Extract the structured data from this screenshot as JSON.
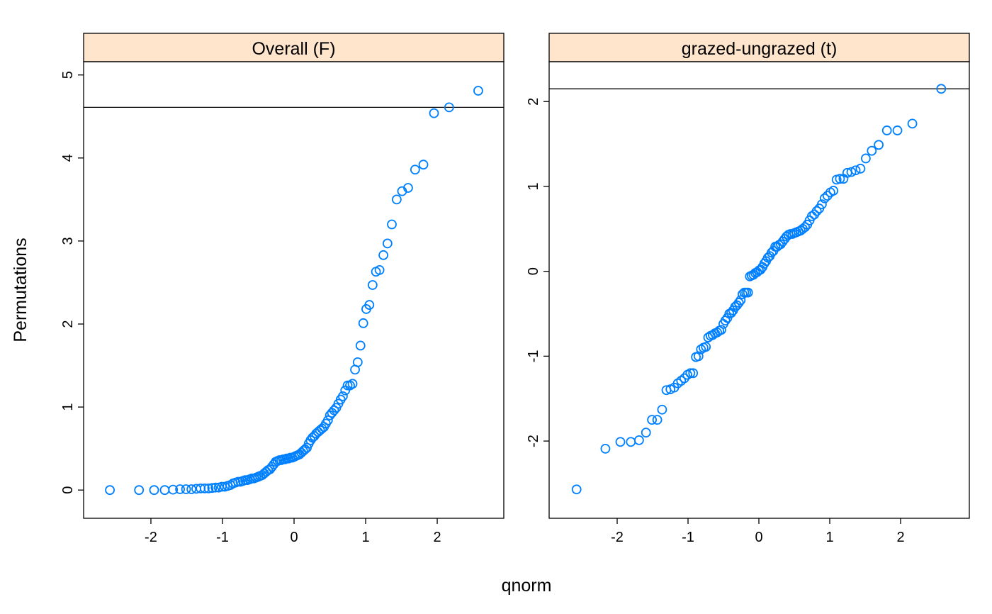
{
  "xlabel": "qnorm",
  "ylabel": "Permutations",
  "chart_data": [
    {
      "type": "scatter",
      "title": "Overall (F)",
      "color": "#0080ff",
      "strip_color": "#ffe5cc",
      "x": [
        -2.573,
        -2.166,
        -1.955,
        -1.807,
        -1.691,
        -1.593,
        -1.509,
        -1.434,
        -1.366,
        -1.305,
        -1.248,
        -1.194,
        -1.144,
        -1.097,
        -1.052,
        -1.009,
        -0.967,
        -0.928,
        -0.889,
        -0.852,
        -0.817,
        -0.782,
        -0.748,
        -0.715,
        -0.682,
        -0.651,
        -0.619,
        -0.589,
        -0.559,
        -0.53,
        -0.501,
        -0.473,
        -0.445,
        -0.417,
        -0.39,
        -0.363,
        -0.336,
        -0.309,
        -0.283,
        -0.257,
        -0.231,
        -0.205,
        -0.179,
        -0.153,
        -0.127,
        -0.102,
        -0.076,
        -0.051,
        -0.025,
        0,
        0.025,
        0.051,
        0.076,
        0.102,
        0.127,
        0.153,
        0.179,
        0.205,
        0.231,
        0.257,
        0.283,
        0.309,
        0.336,
        0.363,
        0.39,
        0.417,
        0.445,
        0.473,
        0.501,
        0.53,
        0.559,
        0.589,
        0.619,
        0.651,
        0.682,
        0.715,
        0.748,
        0.782,
        0.817,
        0.852,
        0.889,
        0.928,
        0.967,
        1.009,
        1.052,
        1.097,
        1.144,
        1.194,
        1.248,
        1.305,
        1.366,
        1.434,
        1.509,
        1.593,
        1.691,
        1.807,
        1.955,
        2.166,
        2.573
      ],
      "values": [
        0,
        0,
        0,
        0,
        0.005,
        0.01,
        0.01,
        0.01,
        0.015,
        0.02,
        0.02,
        0.02,
        0.025,
        0.03,
        0.03,
        0.04,
        0.04,
        0.05,
        0.06,
        0.08,
        0.09,
        0.1,
        0.1,
        0.11,
        0.12,
        0.12,
        0.13,
        0.14,
        0.14,
        0.15,
        0.16,
        0.17,
        0.18,
        0.2,
        0.22,
        0.24,
        0.25,
        0.28,
        0.31,
        0.34,
        0.35,
        0.36,
        0.36,
        0.37,
        0.37,
        0.38,
        0.38,
        0.39,
        0.39,
        0.4,
        0.41,
        0.42,
        0.43,
        0.45,
        0.47,
        0.49,
        0.51,
        0.56,
        0.6,
        0.63,
        0.65,
        0.68,
        0.7,
        0.72,
        0.74,
        0.76,
        0.8,
        0.84,
        0.9,
        0.93,
        0.96,
        0.99,
        1.04,
        1.09,
        1.13,
        1.2,
        1.26,
        1.26,
        1.28,
        1.45,
        1.54,
        1.74,
        2.01,
        2.18,
        2.23,
        2.47,
        2.63,
        2.65,
        2.83,
        2.97,
        3.2,
        3.5,
        3.6,
        3.64,
        3.86,
        3.92,
        4.54,
        4.61,
        4.81
      ],
      "hline": 4.61,
      "xlim": [
        -2.94,
        2.93
      ],
      "ylim": [
        -0.34,
        5.16
      ],
      "xticks": [
        -2,
        -1,
        0,
        1,
        2
      ],
      "yticks": [
        0,
        1,
        2,
        3,
        4,
        5
      ]
    },
    {
      "type": "scatter",
      "title": "grazed-ungrazed (t)",
      "color": "#0080ff",
      "strip_color": "#ffe5cc",
      "x": [
        -2.573,
        -2.166,
        -1.955,
        -1.807,
        -1.691,
        -1.593,
        -1.509,
        -1.434,
        -1.366,
        -1.305,
        -1.248,
        -1.194,
        -1.144,
        -1.097,
        -1.052,
        -1.009,
        -0.967,
        -0.928,
        -0.889,
        -0.852,
        -0.817,
        -0.782,
        -0.748,
        -0.715,
        -0.682,
        -0.651,
        -0.619,
        -0.589,
        -0.559,
        -0.53,
        -0.501,
        -0.473,
        -0.445,
        -0.417,
        -0.39,
        -0.363,
        -0.336,
        -0.309,
        -0.283,
        -0.257,
        -0.231,
        -0.205,
        -0.179,
        -0.153,
        -0.127,
        -0.102,
        -0.076,
        -0.051,
        -0.025,
        0,
        0.025,
        0.051,
        0.076,
        0.102,
        0.127,
        0.153,
        0.179,
        0.205,
        0.231,
        0.257,
        0.283,
        0.309,
        0.336,
        0.363,
        0.39,
        0.417,
        0.445,
        0.473,
        0.501,
        0.53,
        0.559,
        0.589,
        0.619,
        0.651,
        0.682,
        0.715,
        0.748,
        0.782,
        0.817,
        0.852,
        0.889,
        0.928,
        0.967,
        1.009,
        1.052,
        1.097,
        1.144,
        1.194,
        1.248,
        1.305,
        1.366,
        1.434,
        1.509,
        1.593,
        1.691,
        1.807,
        1.955,
        2.166,
        2.573
      ],
      "values": [
        -2.57,
        -2.09,
        -2.01,
        -2.01,
        -1.99,
        -1.9,
        -1.75,
        -1.75,
        -1.63,
        -1.4,
        -1.39,
        -1.37,
        -1.32,
        -1.29,
        -1.26,
        -1.22,
        -1.2,
        -1.2,
        -1.01,
        -1.0,
        -0.92,
        -0.9,
        -0.89,
        -0.78,
        -0.76,
        -0.75,
        -0.73,
        -0.72,
        -0.7,
        -0.69,
        -0.62,
        -0.58,
        -0.55,
        -0.5,
        -0.49,
        -0.46,
        -0.42,
        -0.4,
        -0.37,
        -0.34,
        -0.27,
        -0.25,
        -0.25,
        -0.25,
        -0.06,
        -0.05,
        -0.04,
        -0.02,
        -0.01,
        0.01,
        0.02,
        0.05,
        0.09,
        0.12,
        0.16,
        0.18,
        0.22,
        0.24,
        0.29,
        0.29,
        0.31,
        0.32,
        0.35,
        0.38,
        0.41,
        0.43,
        0.44,
        0.44,
        0.45,
        0.46,
        0.47,
        0.48,
        0.5,
        0.52,
        0.55,
        0.6,
        0.65,
        0.67,
        0.71,
        0.74,
        0.79,
        0.86,
        0.89,
        0.93,
        0.95,
        1.08,
        1.09,
        1.09,
        1.16,
        1.17,
        1.19,
        1.21,
        1.33,
        1.42,
        1.49,
        1.66,
        1.66,
        1.74,
        2.15
      ],
      "hline": 2.15,
      "xlim": [
        -2.96,
        2.97
      ],
      "ylim": [
        -2.91,
        2.47
      ],
      "xticks": [
        -2,
        -1,
        0,
        1,
        2
      ],
      "yticks": [
        -2,
        -1,
        0,
        1,
        2
      ]
    }
  ]
}
